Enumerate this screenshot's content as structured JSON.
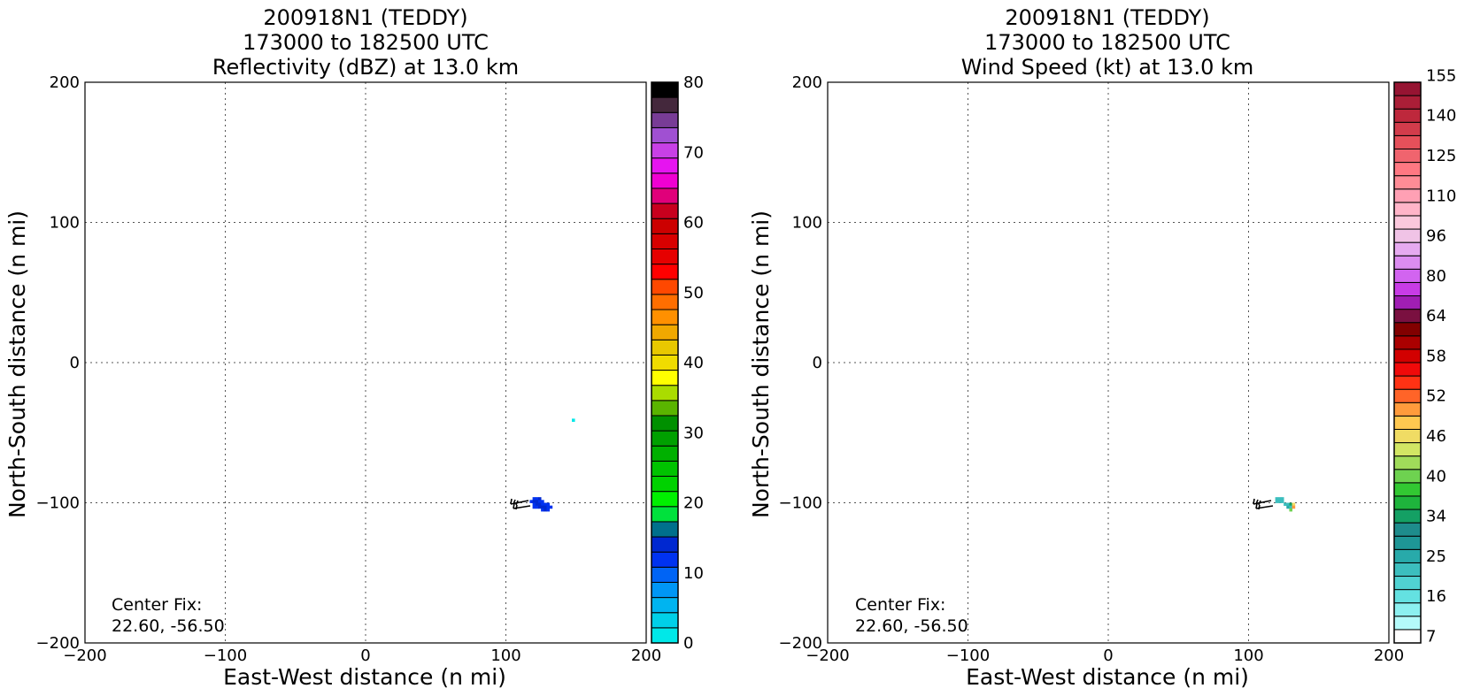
{
  "chart_data": [
    {
      "type": "heatmap",
      "title_lines": [
        "200918N1 (TEDDY)",
        "173000 to 182500 UTC",
        "Reflectivity (dBZ) at 13.0 km"
      ],
      "xlabel": "East-West distance (n mi)",
      "ylabel": "North-South distance (n mi)",
      "xlim": [
        -200,
        200
      ],
      "ylim": [
        -200,
        200
      ],
      "xticks": [
        "−200",
        "−100",
        "0",
        "100",
        "200"
      ],
      "yticks": [
        "200",
        "100",
        "0",
        "−100",
        "−200"
      ],
      "grid": true,
      "annotation_lines": [
        "Center Fix:",
        "22.60, -56.50"
      ],
      "colorbar": {
        "min": 0,
        "max": 80,
        "tick_labels": [
          "0",
          "10",
          "20",
          "30",
          "40",
          "50",
          "60",
          "70",
          "80"
        ],
        "colors": [
          "#00e8e8",
          "#00d0e8",
          "#00b4f0",
          "#0096f5",
          "#0064f5",
          "#0032f0",
          "#0028d0",
          "#00708c",
          "#00e13c",
          "#00f000",
          "#00d200",
          "#00c300",
          "#00b000",
          "#00a000",
          "#009000",
          "#5ab400",
          "#aadc00",
          "#ffff00",
          "#f0dc00",
          "#e8c800",
          "#f0a800",
          "#ff9000",
          "#ff6e00",
          "#ff4800",
          "#ff0000",
          "#e60000",
          "#d80000",
          "#cc0000",
          "#c8001e",
          "#e0007a",
          "#f000d2",
          "#e614f0",
          "#c840e6",
          "#a050d2",
          "#783c96",
          "#44283c",
          "#000000"
        ]
      },
      "cells": [
        {
          "x": 120,
          "y": -97,
          "value": 12
        },
        {
          "x": 122,
          "y": -97,
          "value": 12
        },
        {
          "x": 124,
          "y": -97,
          "value": 13
        },
        {
          "x": 118,
          "y": -99,
          "value": 12
        },
        {
          "x": 120,
          "y": -99,
          "value": 13
        },
        {
          "x": 122,
          "y": -99,
          "value": 13
        },
        {
          "x": 124,
          "y": -99,
          "value": 12
        },
        {
          "x": 126,
          "y": -99,
          "value": 12
        },
        {
          "x": 120,
          "y": -101,
          "value": 12
        },
        {
          "x": 122,
          "y": -101,
          "value": 13
        },
        {
          "x": 124,
          "y": -101,
          "value": 13
        },
        {
          "x": 126,
          "y": -101,
          "value": 12
        },
        {
          "x": 128,
          "y": -101,
          "value": 12
        },
        {
          "x": 130,
          "y": -101,
          "value": 12
        },
        {
          "x": 120,
          "y": -103,
          "value": 12
        },
        {
          "x": 122,
          "y": -103,
          "value": 12
        },
        {
          "x": 124,
          "y": -103,
          "value": 13
        },
        {
          "x": 126,
          "y": -103,
          "value": 13
        },
        {
          "x": 128,
          "y": -103,
          "value": 13
        },
        {
          "x": 130,
          "y": -103,
          "value": 12
        },
        {
          "x": 132,
          "y": -103,
          "value": 12
        },
        {
          "x": 126,
          "y": -105,
          "value": 12
        },
        {
          "x": 128,
          "y": -105,
          "value": 13
        },
        {
          "x": 130,
          "y": -105,
          "value": 12
        },
        {
          "x": 148,
          "y": -41,
          "value": 1
        }
      ]
    },
    {
      "type": "heatmap",
      "title_lines": [
        "200918N1 (TEDDY)",
        "173000 to 182500 UTC",
        "Wind Speed (kt) at 13.0 km"
      ],
      "xlabel": "East-West distance (n mi)",
      "ylabel": "North-South distance (n mi)",
      "xlim": [
        -200,
        200
      ],
      "ylim": [
        -200,
        200
      ],
      "xticks": [
        "−200",
        "−100",
        "0",
        "100",
        "200"
      ],
      "yticks": [
        "200",
        "100",
        "0",
        "−100",
        "−200"
      ],
      "grid": true,
      "annotation_lines": [
        "Center Fix:",
        "22.60, -56.50"
      ],
      "colorbar": {
        "tick_labels": [
          "7",
          "16",
          "25",
          "34",
          "40",
          "46",
          "52",
          "58",
          "64",
          "80",
          "96",
          "110",
          "125",
          "140",
          "155"
        ],
        "tick_bins": [
          0,
          3,
          6,
          9,
          12,
          15,
          18,
          21,
          24,
          27,
          30,
          33,
          36,
          39,
          42
        ],
        "colors": [
          "#ffffff",
          "#b4fafa",
          "#8cf0f0",
          "#64e1e1",
          "#50d2d2",
          "#3cbebe",
          "#28aaaa",
          "#1e9696",
          "#1e8c8c",
          "#14a064",
          "#1eb43c",
          "#32c832",
          "#6ed250",
          "#a0dc5a",
          "#d2e664",
          "#f0dc64",
          "#ffc850",
          "#ff9b3c",
          "#ff6428",
          "#ff3214",
          "#f00a0a",
          "#d20000",
          "#aa0000",
          "#820000",
          "#7a1040",
          "#a01eb4",
          "#c83ce6",
          "#d264f0",
          "#dc8cf0",
          "#e6aaf0",
          "#f0c3e6",
          "#fac8dc",
          "#ffb4c8",
          "#ffa0b4",
          "#ff8c96",
          "#ff7882",
          "#f0646e",
          "#e6505a",
          "#d23c4b",
          "#be283c",
          "#aa1e37",
          "#961432"
        ],
        "bins": 42
      },
      "cells": [
        {
          "x": 120,
          "y": -97,
          "value": 22
        },
        {
          "x": 122,
          "y": -97,
          "value": 22
        },
        {
          "x": 124,
          "y": -97,
          "value": 21
        },
        {
          "x": 120,
          "y": -99,
          "value": 21
        },
        {
          "x": 122,
          "y": -99,
          "value": 22
        },
        {
          "x": 124,
          "y": -99,
          "value": 21
        },
        {
          "x": 126,
          "y": -101,
          "value": 21
        },
        {
          "x": 128,
          "y": -101,
          "value": 22
        },
        {
          "x": 130,
          "y": -101,
          "value": 34
        },
        {
          "x": 132,
          "y": -101,
          "value": 46
        },
        {
          "x": 128,
          "y": -103,
          "value": 25
        },
        {
          "x": 130,
          "y": -103,
          "value": 22
        },
        {
          "x": 132,
          "y": -103,
          "value": 50
        },
        {
          "x": 130,
          "y": -105,
          "value": 40
        }
      ]
    }
  ]
}
